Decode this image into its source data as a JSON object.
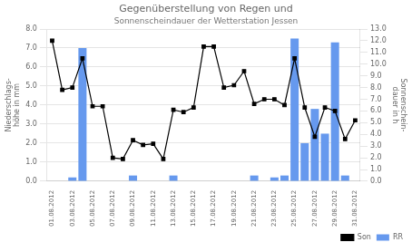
{
  "chart_data": {
    "type": "bar",
    "title": "Gegenüberstellung von Regen und",
    "subtitle": "Sonnenscheindauer der Wetterstation Jessen",
    "ylabel": "Niederschlags-\nhöhe in mm",
    "y2label": "Sonnenschein-\ndauer in h",
    "categories": [
      "01.08.2012",
      null,
      "03.08.2012",
      null,
      "05.08.2012",
      null,
      "07.08.2012",
      null,
      "09.08.2012",
      null,
      "11.08.2012",
      null,
      "13.08.2012",
      null,
      "15.08.2012",
      null,
      "17.08.2012",
      null,
      "19.08.2012",
      null,
      "21.08.2012",
      null,
      "23.08.2012",
      null,
      "25.08.2012",
      null,
      "27.08.2012",
      null,
      "29.08.2012",
      null,
      "31.08.2012"
    ],
    "series": [
      {
        "name": "RR",
        "type": "bar",
        "color": "#6699EE",
        "values": [
          0.0,
          0.0,
          0.2,
          7.0,
          0.0,
          0.0,
          0.0,
          0.0,
          0.3,
          0.0,
          0.0,
          0.0,
          0.3,
          0.0,
          0.0,
          0.0,
          0.0,
          0.0,
          0.0,
          0.0,
          0.3,
          0.0,
          0.2,
          0.3,
          7.5,
          2.0,
          3.8,
          2.5,
          7.3,
          0.3,
          0.0
        ]
      },
      {
        "name": "Son",
        "type": "line",
        "color": "#000000",
        "marker": "square",
        "axis": "y2",
        "values": [
          12.0,
          7.8,
          8.0,
          10.5,
          6.4,
          6.4,
          2.0,
          1.9,
          3.5,
          3.1,
          3.2,
          1.9,
          6.1,
          5.9,
          6.3,
          11.5,
          11.5,
          8.0,
          8.2,
          9.4,
          6.6,
          7.0,
          7.0,
          6.5,
          10.5,
          6.3,
          3.8,
          6.3,
          6.0,
          3.6,
          5.2
        ]
      }
    ],
    "ylim": [
      0,
      8
    ],
    "yticks": [
      {
        "value": 0,
        "label": "0.0"
      },
      {
        "value": 1,
        "label": "1.0"
      },
      {
        "value": 2,
        "label": "2.0"
      },
      {
        "value": 3,
        "label": "3.0"
      },
      {
        "value": 4,
        "label": "4.0"
      },
      {
        "value": 5,
        "label": "5.0"
      },
      {
        "value": 6,
        "label": "6.0"
      },
      {
        "value": 7,
        "label": "7.0"
      },
      {
        "value": 8,
        "label": "8.0"
      }
    ],
    "y2lim": [
      0,
      13
    ],
    "y2ticks": [
      {
        "value": 0,
        "label": "0.0"
      },
      {
        "value": 1,
        "label": "1.0"
      },
      {
        "value": 2,
        "label": "2.0"
      },
      {
        "value": 3,
        "label": "3.0"
      },
      {
        "value": 4,
        "label": "4.0"
      },
      {
        "value": 5,
        "label": "5.0"
      },
      {
        "value": 6,
        "label": "6.0"
      },
      {
        "value": 7,
        "label": "7.0"
      },
      {
        "value": 8,
        "label": "8.0"
      },
      {
        "value": 9,
        "label": "9.0"
      },
      {
        "value": 10,
        "label": "10.0"
      },
      {
        "value": 11,
        "label": "11.0"
      },
      {
        "value": 12,
        "label": "12.0"
      },
      {
        "value": 13,
        "label": "13.0"
      }
    ],
    "grid": true,
    "legend": "lower right"
  }
}
